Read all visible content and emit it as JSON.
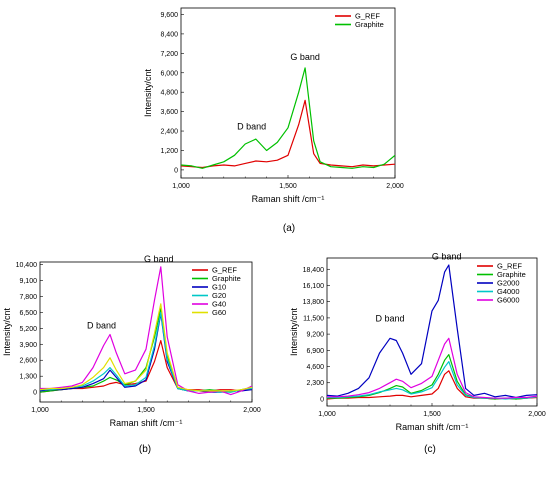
{
  "chart_data": [
    {
      "type": "line",
      "panel_label": "(a)",
      "xlabel": "Raman shift /cm⁻¹",
      "ylabel": "Intensity/cnt",
      "xlim": [
        1000,
        2000
      ],
      "ylim": [
        -500,
        10000
      ],
      "xticks": [
        1000,
        1500,
        2000
      ],
      "xtick_labels": [
        "1,000",
        "1,500",
        "2,000"
      ],
      "yticks": [
        0,
        1200,
        2400,
        3600,
        4800,
        6000,
        7200,
        8400,
        9600
      ],
      "ytick_labels": [
        "0",
        "1,200",
        "2,400",
        "3,600",
        "4,800",
        "6,000",
        "7,200",
        "8,400",
        "9,600"
      ],
      "legend_position": "top-right",
      "annotations": [
        {
          "text": "D band",
          "x": 1330,
          "y": 2500
        },
        {
          "text": "G band",
          "x": 1580,
          "y": 6800
        }
      ],
      "x": [
        1000,
        1050,
        1100,
        1150,
        1200,
        1250,
        1300,
        1350,
        1400,
        1450,
        1500,
        1550,
        1580,
        1620,
        1650,
        1700,
        1750,
        1800,
        1850,
        1900,
        1950,
        2000
      ],
      "series": [
        {
          "name": "G_REF",
          "color": "#e00000",
          "values": [
            250,
            200,
            150,
            250,
            300,
            250,
            400,
            550,
            500,
            600,
            900,
            2800,
            4300,
            1000,
            400,
            300,
            250,
            200,
            300,
            250,
            300,
            350
          ]
        },
        {
          "name": "Graphite",
          "color": "#00c000",
          "values": [
            300,
            250,
            100,
            300,
            500,
            900,
            1600,
            1900,
            1200,
            1700,
            2600,
            4800,
            6300,
            1800,
            500,
            200,
            150,
            100,
            200,
            150,
            350,
            900
          ]
        }
      ]
    },
    {
      "type": "line",
      "panel_label": "(b)",
      "xlabel": "Raman shift /cm⁻¹",
      "ylabel": "Intensity/cnt",
      "xlim": [
        1000,
        2000
      ],
      "ylim": [
        -800,
        10600
      ],
      "xticks": [
        1000,
        1500,
        2000
      ],
      "xtick_labels": [
        "1,000",
        "1,500",
        "2,000"
      ],
      "yticks": [
        0,
        1300,
        2600,
        3900,
        5200,
        6500,
        7800,
        9100,
        10400
      ],
      "ytick_labels": [
        "0",
        "1,300",
        "2,600",
        "3,900",
        "5,200",
        "6,500",
        "7,800",
        "9,100",
        "10,400"
      ],
      "legend_position": "top-right",
      "annotations": [
        {
          "text": "D band",
          "x": 1290,
          "y": 5200
        },
        {
          "text": "G band",
          "x": 1560,
          "y": 10600
        }
      ],
      "x": [
        1000,
        1050,
        1100,
        1150,
        1200,
        1250,
        1300,
        1330,
        1360,
        1400,
        1450,
        1500,
        1540,
        1570,
        1600,
        1650,
        1700,
        1750,
        1800,
        1850,
        1900,
        1950,
        2000
      ],
      "series": [
        {
          "name": "G_REF",
          "color": "#e00000",
          "values": [
            0,
            100,
            200,
            300,
            300,
            400,
            500,
            700,
            800,
            600,
            700,
            900,
            2500,
            4200,
            2000,
            300,
            200,
            200,
            100,
            200,
            200,
            100,
            300
          ]
        },
        {
          "name": "Graphite",
          "color": "#00c000",
          "values": [
            0,
            100,
            200,
            300,
            400,
            500,
            900,
            1200,
            1000,
            600,
            900,
            2000,
            4500,
            6800,
            3000,
            300,
            100,
            100,
            200,
            100,
            0,
            200,
            400
          ]
        },
        {
          "name": "G10",
          "color": "#0000c0",
          "values": [
            100,
            200,
            200,
            300,
            400,
            700,
            1100,
            1800,
            1200,
            400,
            500,
            1000,
            3500,
            6400,
            2500,
            300,
            100,
            100,
            0,
            0,
            100,
            100,
            200
          ]
        },
        {
          "name": "G20",
          "color": "#00c8c8",
          "values": [
            200,
            200,
            300,
            400,
            500,
            900,
            1500,
            2000,
            1400,
            500,
            600,
            1200,
            3800,
            6500,
            2700,
            300,
            100,
            100,
            100,
            0,
            0,
            200,
            300
          ]
        },
        {
          "name": "G40",
          "color": "#e000e0",
          "values": [
            300,
            300,
            400,
            500,
            800,
            2000,
            3800,
            4700,
            3200,
            1500,
            1800,
            3500,
            7500,
            10200,
            4500,
            600,
            100,
            -100,
            0,
            100,
            -200,
            100,
            500
          ]
        },
        {
          "name": "G60",
          "color": "#e0e000",
          "values": [
            200,
            300,
            300,
            400,
            600,
            1200,
            2000,
            2800,
            1800,
            700,
            900,
            1800,
            4800,
            7200,
            3200,
            400,
            200,
            100,
            100,
            100,
            100,
            200,
            400
          ]
        }
      ]
    },
    {
      "type": "line",
      "panel_label": "(c)",
      "xlabel": "Raman shift /cm⁻¹",
      "ylabel": "Intensity/cnt",
      "xlim": [
        1000,
        2000
      ],
      "ylim": [
        -1000,
        20000
      ],
      "xticks": [
        1000,
        1500,
        2000
      ],
      "xtick_labels": [
        "1,000",
        "1,500",
        "2,000"
      ],
      "yticks": [
        0,
        2300,
        4600,
        6900,
        9200,
        11500,
        13800,
        16100,
        18400
      ],
      "ytick_labels": [
        "0",
        "2,300",
        "4,600",
        "6,900",
        "9,200",
        "11,500",
        "13,800",
        "16,100",
        "18,400"
      ],
      "legend_position": "top-right",
      "annotations": [
        {
          "text": "D band",
          "x": 1300,
          "y": 11000
        },
        {
          "text": "G band",
          "x": 1570,
          "y": 19800
        }
      ],
      "x": [
        1000,
        1050,
        1100,
        1150,
        1200,
        1250,
        1300,
        1330,
        1360,
        1400,
        1450,
        1500,
        1530,
        1560,
        1580,
        1620,
        1660,
        1700,
        1750,
        1800,
        1850,
        1900,
        1950,
        2000
      ],
      "series": [
        {
          "name": "G_REF",
          "color": "#e00000",
          "values": [
            0,
            100,
            100,
            200,
            200,
            300,
            400,
            500,
            500,
            300,
            500,
            700,
            1500,
            3500,
            4000,
            1500,
            300,
            100,
            100,
            0,
            100,
            0,
            100,
            200
          ]
        },
        {
          "name": "Graphite",
          "color": "#00c000",
          "values": [
            100,
            100,
            200,
            300,
            500,
            900,
            1500,
            1900,
            1700,
            800,
            1200,
            2000,
            3500,
            5500,
            6300,
            2500,
            600,
            200,
            100,
            0,
            100,
            0,
            100,
            300
          ]
        },
        {
          "name": "G2000",
          "color": "#0000c0",
          "values": [
            500,
            400,
            800,
            1500,
            3000,
            6500,
            8600,
            8300,
            6500,
            3500,
            5000,
            12500,
            14000,
            18000,
            19000,
            10000,
            1500,
            500,
            800,
            300,
            500,
            200,
            500,
            600
          ]
        },
        {
          "name": "G4000",
          "color": "#00c8c8",
          "values": [
            200,
            200,
            300,
            400,
            600,
            1000,
            1300,
            1500,
            1300,
            700,
            1000,
            1600,
            3000,
            4500,
            5300,
            2000,
            500,
            200,
            100,
            100,
            0,
            100,
            100,
            300
          ]
        },
        {
          "name": "G6000",
          "color": "#e000e0",
          "values": [
            300,
            300,
            400,
            600,
            900,
            1500,
            2300,
            2800,
            2500,
            1600,
            2200,
            3200,
            5500,
            7800,
            8600,
            3500,
            900,
            300,
            200,
            100,
            100,
            200,
            200,
            400
          ]
        }
      ]
    }
  ]
}
